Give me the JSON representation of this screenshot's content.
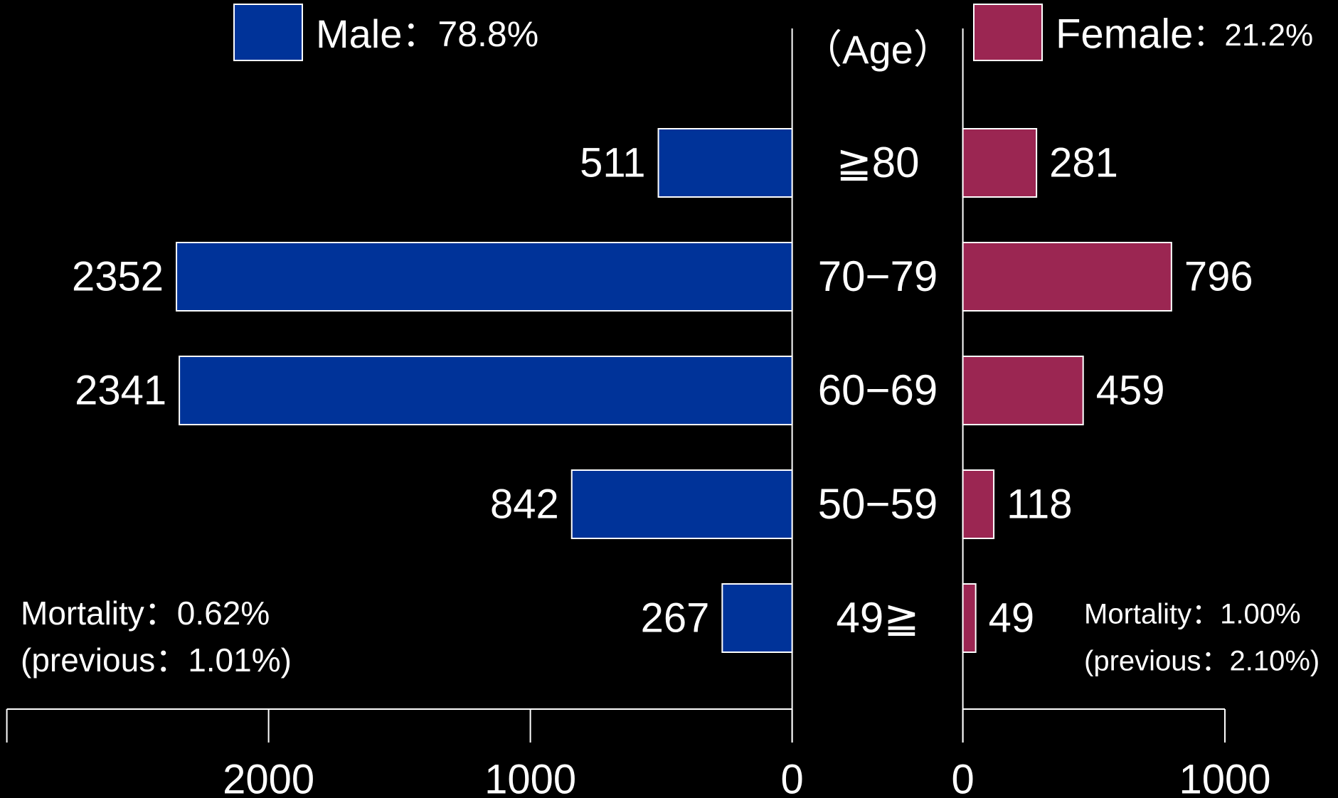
{
  "chart_data": {
    "type": "pyramid",
    "axis_label": "（Age）",
    "categories": [
      "≧80",
      "70−79",
      "60−69",
      "50−59",
      "49≧"
    ],
    "series": [
      {
        "name": "Male",
        "share": "：78.8%",
        "color": "#003399",
        "values": [
          511,
          2352,
          2341,
          842,
          267
        ],
        "xlim": [
          0,
          3000
        ],
        "xticks": [
          0,
          1000,
          2000
        ],
        "mortality": "Mortality：0.62%",
        "previous": "(previous：1.01%)"
      },
      {
        "name": "Female",
        "share": "：21.2%",
        "color": "#9b2652",
        "values": [
          281,
          796,
          459,
          118,
          49
        ],
        "xlim": [
          0,
          1000
        ],
        "xticks": [
          0,
          1000
        ],
        "mortality": "Mortality：1.00%",
        "previous": "(previous：2.10%)"
      }
    ]
  }
}
